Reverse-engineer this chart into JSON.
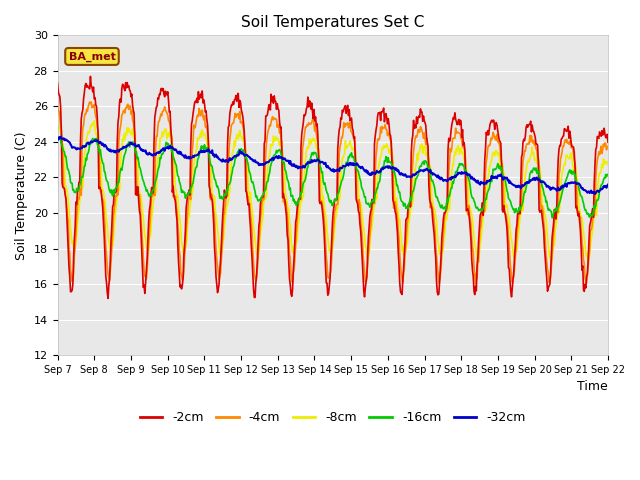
{
  "title": "Soil Temperatures Set C",
  "xlabel": "Time",
  "ylabel": "Soil Temperature (C)",
  "ylim": [
    12,
    30
  ],
  "yticks": [
    12,
    14,
    16,
    18,
    20,
    22,
    24,
    26,
    28,
    30
  ],
  "fig_bg_color": "#ffffff",
  "plot_bg_color": "#e8e8e8",
  "grid_color": "#ffffff",
  "legend_label": "BA_met",
  "series_colors": {
    "-2cm": "#dd0000",
    "-4cm": "#ff8800",
    "-8cm": "#eeee00",
    "-16cm": "#00cc00",
    "-32cm": "#0000cc"
  },
  "line_width": 1.2,
  "date_labels": [
    "Sep 7",
    "Sep 8",
    "Sep 9",
    "Sep 10",
    "Sep 11",
    "Sep 12",
    "Sep 13",
    "Sep 14",
    "Sep 15",
    "Sep 16",
    "Sep 17",
    "Sep 18",
    "Sep 19",
    "Sep 20",
    "Sep 21",
    "Sep 22"
  ],
  "n_points": 720
}
